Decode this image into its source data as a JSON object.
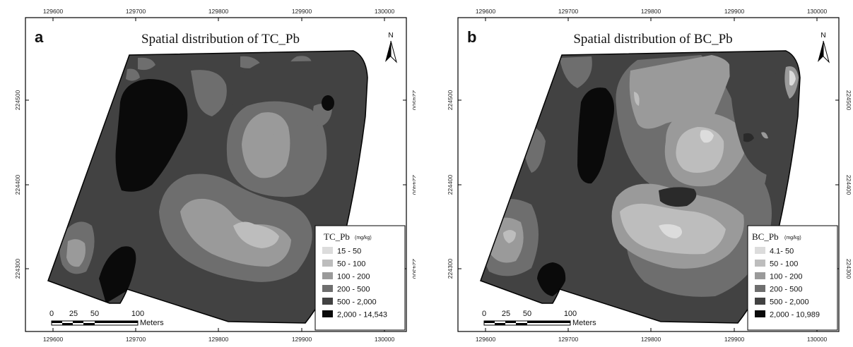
{
  "map_style": {
    "class_colors": [
      "#dcdcdc",
      "#bdbdbd",
      "#9a9a9a",
      "#6e6e6e",
      "#424242",
      "#0a0a0a"
    ],
    "frame_color": "#000000"
  },
  "panels": [
    {
      "letter": "a",
      "title": "Spatial distribution of TC_Pb",
      "north_label": "N",
      "x_ticks": [
        "129600",
        "129700",
        "129800",
        "129900",
        "130000"
      ],
      "y_ticks": [
        "224500",
        "224400",
        "224300"
      ],
      "legend": {
        "title": "TC_Pb",
        "unit": "(mg/kg)",
        "items": [
          "15 - 50",
          "50 - 100",
          "100 - 200",
          "200 - 500",
          "500 - 2,000",
          "2,000 - 14,543"
        ]
      },
      "scale": {
        "labels": [
          "0",
          "25",
          "50",
          "100"
        ],
        "unit": "Meters"
      }
    },
    {
      "letter": "b",
      "title": "Spatial distribution of BC_Pb",
      "north_label": "N",
      "x_ticks": [
        "129600",
        "129700",
        "129800",
        "129900",
        "130000"
      ],
      "y_ticks": [
        "224500",
        "224400",
        "224300"
      ],
      "legend": {
        "title": "BC_Pb",
        "unit": "(mg/kg)",
        "items": [
          "4.1- 50",
          "50 - 100",
          "100 - 200",
          "200 - 500",
          "500 - 2,000",
          "2,000 - 10,989"
        ]
      },
      "scale": {
        "labels": [
          "0",
          "25",
          "50",
          "100"
        ],
        "unit": "Meters"
      }
    }
  ]
}
